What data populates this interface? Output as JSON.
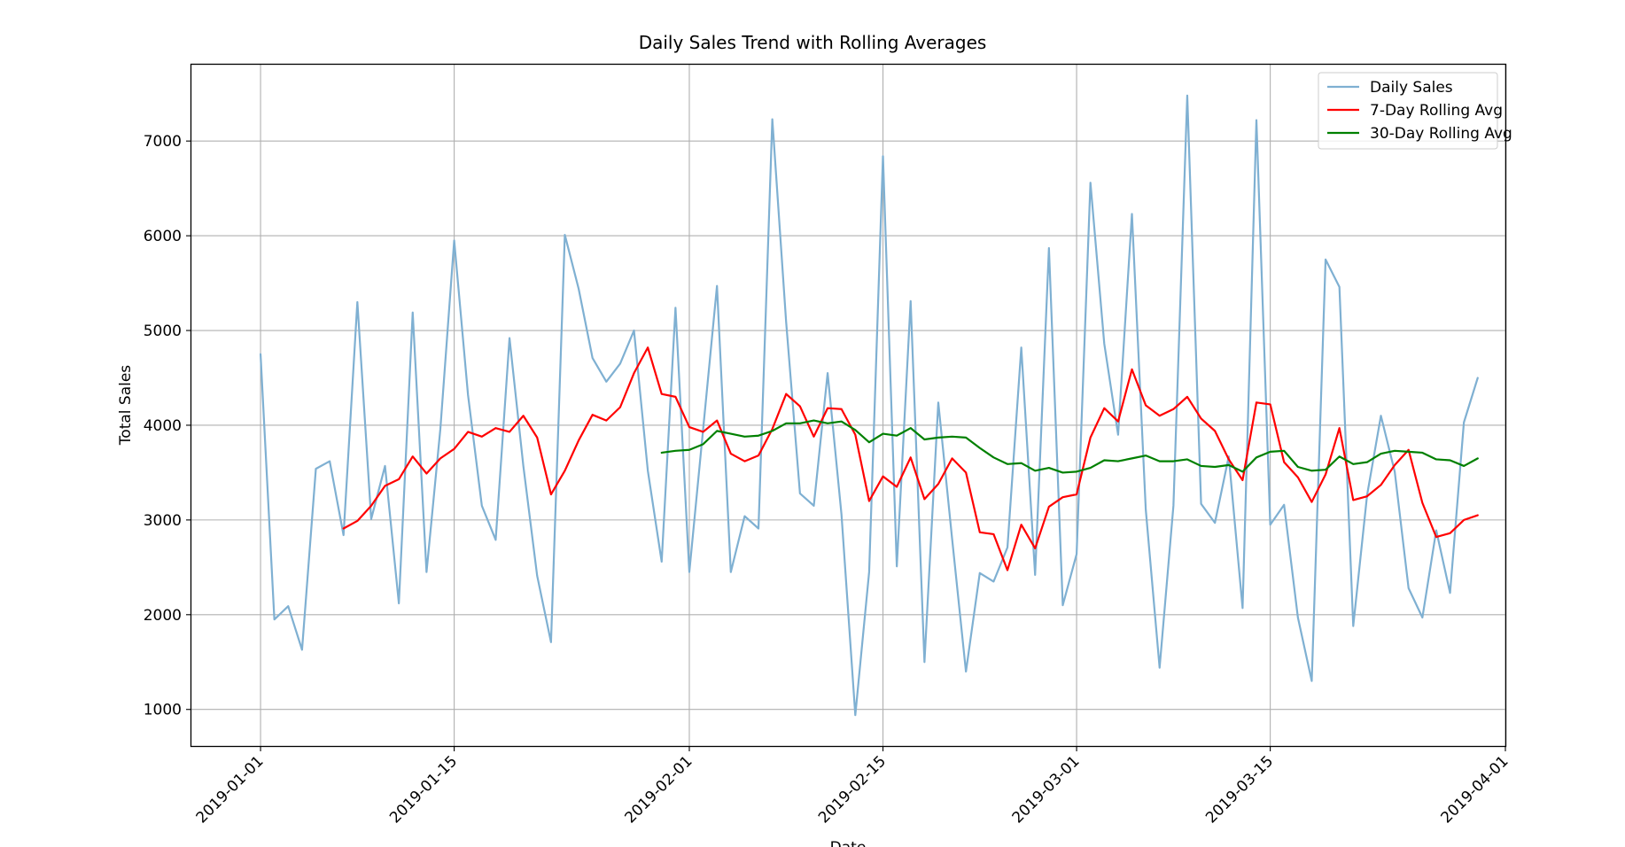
{
  "chart_data": {
    "type": "line",
    "title": "Daily Sales Trend with Rolling Averages",
    "xlabel": "Date",
    "ylabel": "Total Sales",
    "xlim": [
      "2018-12-27",
      "2019-04-01"
    ],
    "ylim": [
      614,
      7806
    ],
    "x_ticks": [
      "2019-01-01",
      "2019-01-15",
      "2019-02-01",
      "2019-02-15",
      "2019-03-01",
      "2019-03-15",
      "2019-04-01"
    ],
    "y_ticks": [
      1000,
      2000,
      3000,
      4000,
      5000,
      6000,
      7000
    ],
    "grid": true,
    "legend_position": "top-right",
    "start_date": "2019-01-01",
    "series": [
      {
        "name": "Daily Sales",
        "color": "#7fb0d2",
        "values": [
          4750,
          1950,
          2090,
          1630,
          3540,
          3620,
          2840,
          5300,
          3010,
          3570,
          2120,
          5190,
          2450,
          3960,
          5950,
          4320,
          3150,
          2790,
          4920,
          3570,
          2410,
          1710,
          6010,
          5440,
          4710,
          4460,
          4650,
          5000,
          3520,
          2560,
          5240,
          2450,
          3960,
          5470,
          2450,
          3040,
          2910,
          7230,
          5090,
          3280,
          3150,
          4550,
          3060,
          940,
          2450,
          6840,
          2510,
          5310,
          1500,
          4240,
          2800,
          1400,
          2440,
          2350,
          2710,
          4820,
          2420,
          5870,
          2100,
          2640,
          6560,
          4860,
          3900,
          6230,
          3110,
          1440,
          3150,
          7480,
          3170,
          2970,
          3670,
          2070,
          7220,
          2950,
          3160,
          1970,
          1300,
          5750,
          5460,
          1880,
          3260,
          4100,
          3510,
          2280,
          1970,
          2890,
          2230,
          4030,
          4500
        ]
      },
      {
        "name": "7-Day Rolling Avg",
        "color": "#ff0000",
        "start_index": 6,
        "values": [
          2910,
          2990,
          3150,
          3360,
          3430,
          3670,
          3490,
          3650,
          3750,
          3930,
          3880,
          3970,
          3930,
          4100,
          3870,
          3270,
          3520,
          3840,
          4110,
          4050,
          4190,
          4550,
          4820,
          4330,
          4300,
          3980,
          3930,
          4050,
          3700,
          3620,
          3680,
          3960,
          4330,
          4200,
          3880,
          4180,
          4170,
          3900,
          3200,
          3460,
          3350,
          3660,
          3220,
          3380,
          3650,
          3500,
          2870,
          2850,
          2470,
          2950,
          2700,
          3140,
          3240,
          3270,
          3870,
          4180,
          4040,
          4590,
          4210,
          4100,
          4170,
          4300,
          4070,
          3940,
          3640,
          3420,
          4240,
          4220,
          3610,
          3450,
          3190,
          3480,
          3970,
          3210,
          3250,
          3370,
          3580,
          3740,
          3180,
          2820,
          2860,
          3000,
          3050
        ]
      },
      {
        "name": "30-Day Rolling Avg",
        "color": "#008000",
        "start_index": 29,
        "values": [
          3710,
          3730,
          3740,
          3800,
          3940,
          3910,
          3880,
          3890,
          3940,
          4020,
          4020,
          4050,
          4020,
          4040,
          3950,
          3820,
          3910,
          3890,
          3970,
          3850,
          3870,
          3880,
          3870,
          3760,
          3660,
          3590,
          3600,
          3520,
          3550,
          3500,
          3510,
          3550,
          3630,
          3620,
          3650,
          3680,
          3620,
          3620,
          3640,
          3570,
          3560,
          3580,
          3510,
          3660,
          3720,
          3730,
          3560,
          3520,
          3530,
          3670,
          3590,
          3610,
          3700,
          3730,
          3720,
          3710,
          3640,
          3630,
          3570,
          3650
        ]
      }
    ]
  }
}
